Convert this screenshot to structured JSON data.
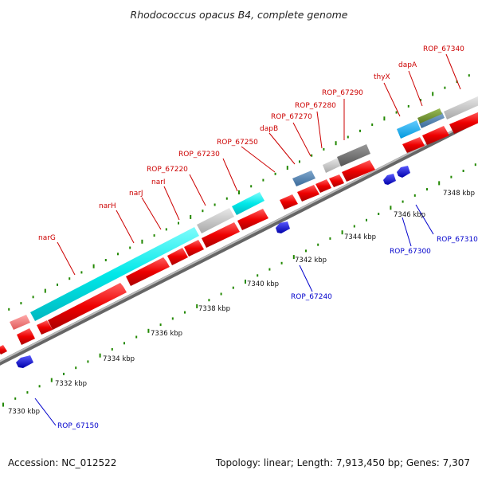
{
  "title": "Rhodococcus opacus B4, complete genome",
  "footer": {
    "accession": "Accession: NC_012522",
    "summary": "Topology: linear; Length: 7,913,450 bp; Genes: 7,307"
  },
  "scale_labels": [
    "7330 kbp",
    "7332 kbp",
    "7334 kbp",
    "7336 kbp",
    "7338 kbp",
    "7340 kbp",
    "7342 kbp",
    "7344 kbp",
    "7346 kbp",
    "7348 kbp"
  ],
  "genes_forward": [
    "narG",
    "narH",
    "narJ",
    "narI",
    "ROP_67220",
    "ROP_67230",
    "ROP_67250",
    "dapB",
    "ROP_67270",
    "ROP_67280",
    "ROP_67290",
    "thyX",
    "dapA",
    "ROP_67340"
  ],
  "genes_reverse": [
    "ROP_67150",
    "ROP_67240",
    "ROP_67300",
    "ROP_67310"
  ],
  "colors": {
    "gene_forward": "#ff0000",
    "gene_reverse": "#0000ff",
    "rna": "#00e5e5",
    "tick": "#228800",
    "backbone": "#888888"
  }
}
